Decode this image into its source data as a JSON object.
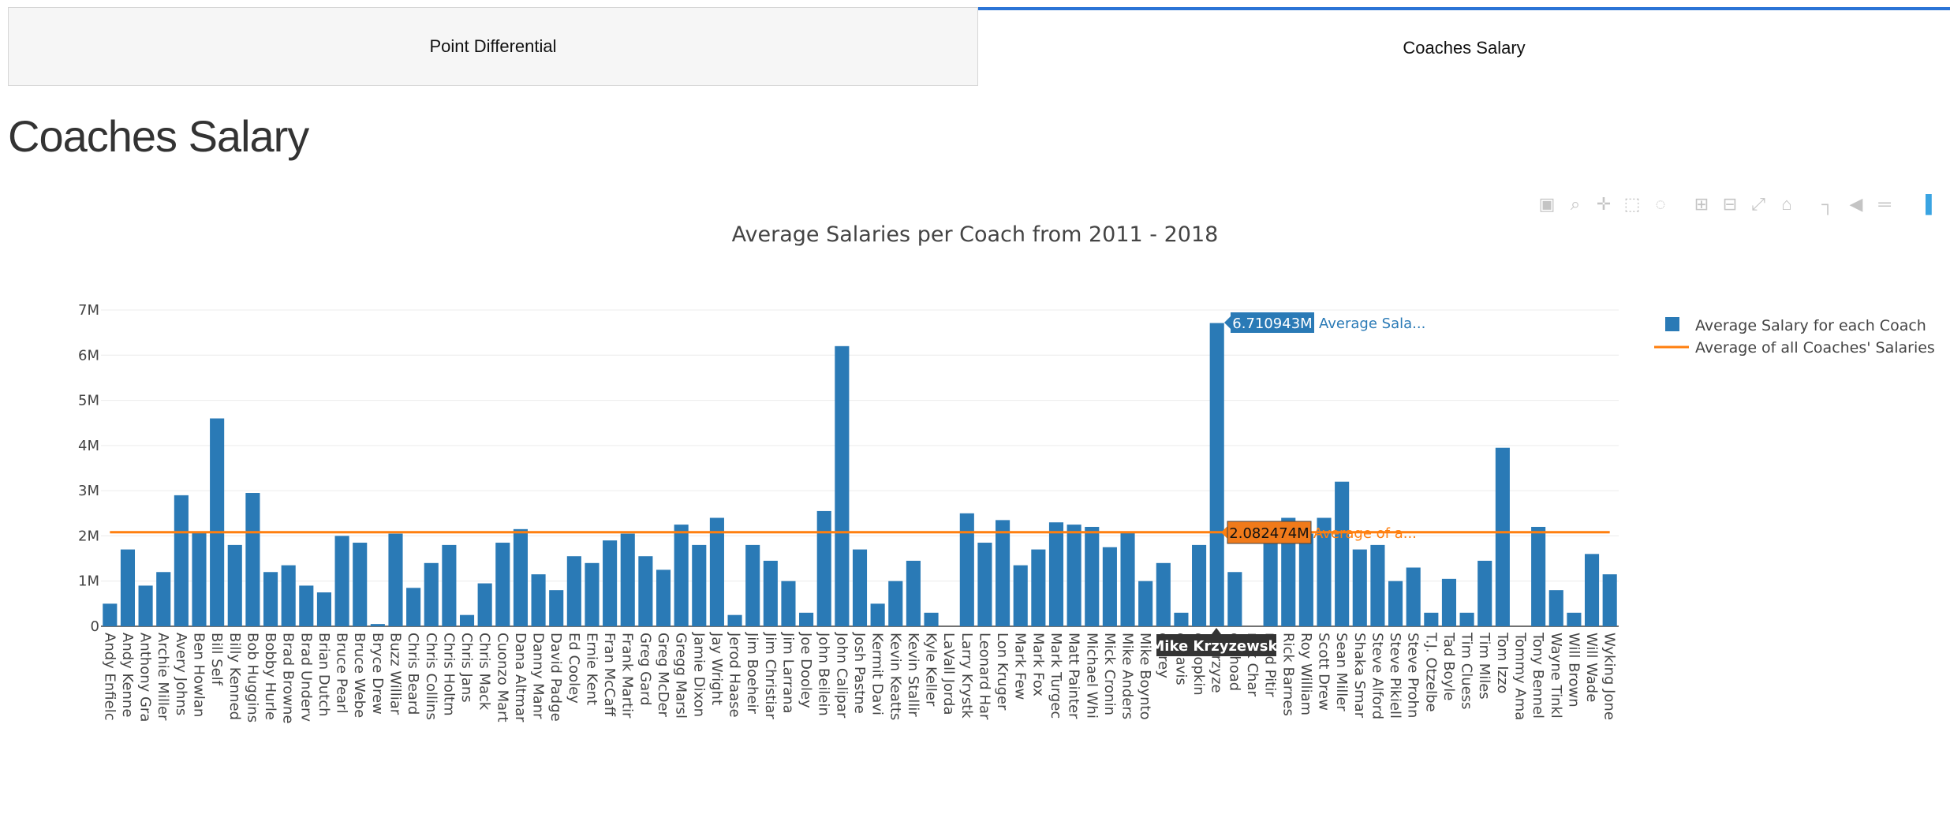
{
  "tabs": [
    {
      "label": "Point Differential",
      "active": false
    },
    {
      "label": "Coaches Salary",
      "active": true
    }
  ],
  "page_title": "Coaches Salary",
  "modebar": {
    "icons": [
      "camera-icon",
      "zoom-icon",
      "pan-icon",
      "box-select-icon",
      "lasso-select-icon",
      "zoom-in-icon",
      "zoom-out-icon",
      "autoscale-icon",
      "reset-axes-icon",
      "spike-lines-icon",
      "hover-closest-icon",
      "hover-compare-icon",
      "plotly-logo-icon"
    ]
  },
  "colors": {
    "bar": "#2a7ab6",
    "line": "#ff7f0e",
    "tab_accent": "#2b74d6",
    "hover_label_bg": "#333333"
  },
  "chart_data": {
    "type": "bar",
    "title": "Average Salaries per Coach from 2011 - 2018",
    "xlabel": "",
    "ylabel": "",
    "ylim": [
      0,
      7000000
    ],
    "y_ticks": [
      {
        "v": 0,
        "label": "0"
      },
      {
        "v": 1000000,
        "label": "1M"
      },
      {
        "v": 2000000,
        "label": "2M"
      },
      {
        "v": 3000000,
        "label": "3M"
      },
      {
        "v": 4000000,
        "label": "4M"
      },
      {
        "v": 5000000,
        "label": "5M"
      },
      {
        "v": 6000000,
        "label": "6M"
      },
      {
        "v": 7000000,
        "label": "7M"
      }
    ],
    "grid": true,
    "legend_position": "top-right",
    "categories": [
      "Andy Enfield",
      "Andy Kennedy",
      "Anthony Grant",
      "Archie Miller",
      "Avery Johnson",
      "Ben Howland",
      "Bill Self",
      "Billy Kennedy",
      "Bob Huggins",
      "Bobby Hurley",
      "Brad Brownell",
      "Brad Underwood",
      "Brian Dutcher",
      "Bruce Pearl",
      "Bruce Weber",
      "Bryce Drew",
      "Buzz Williams",
      "Chris Beard",
      "Chris Collins",
      "Chris Holtmann",
      "Chris Jans",
      "Chris Mack",
      "Cuonzo Martin",
      "Dana Altman",
      "Danny Manning",
      "David Padgett",
      "Ed Cooley",
      "Ernie Kent",
      "Fran McCaffery",
      "Frank Martin",
      "Greg Gard",
      "Greg McDermott",
      "Gregg Marshall",
      "Jamie Dixon",
      "Jay Wright",
      "Jerod Haase",
      "Jim Boeheim",
      "Jim Christian",
      "Jim Larranaga",
      "Joe Dooley",
      "John Beilein",
      "John Calipari",
      "Josh Pastner",
      "Kermit Davis",
      "Kevin Keatts",
      "Kevin Stallings",
      "Kyle Keller",
      "LaVall Jordan",
      "Larry Krystkowiak",
      "Leonard Hamilton",
      "Lon Kruger",
      "Mark Few",
      "Mark Fox",
      "Mark Turgeon",
      "Matt Painter",
      "Michael White",
      "Mick Cronin",
      "Mike Anderson",
      "Mike Boynton",
      "Mike Brey",
      "Mike Davis",
      "Mike Hopkins",
      "Mike Krzyzewski",
      "Mike Rhoades",
      "Patrick Chambers",
      "Richard Pitino",
      "Rick Barnes",
      "Roy Williams",
      "Scott Drew",
      "Sean Miller",
      "Shaka Smart",
      "Steve Alford",
      "Steve Pikiell",
      "Steve Prohm",
      "T.J. Otzelberger",
      "Tad Boyle",
      "Tim Cluess",
      "Tim Miles",
      "Tom Izzo",
      "Tommy Amaker",
      "Tony Bennett",
      "Wayne Tinkle",
      "Will Brown",
      "Will Wade",
      "Wyking Jones"
    ],
    "category_labels": [
      "Andy Enfielc",
      "Andy Kenne",
      "Anthony Gra",
      "Archie Miller",
      "Avery Johns",
      "Ben Howlan",
      "Bill Self",
      "Billy Kenned",
      "Bob Huggins",
      "Bobby Hurle",
      "Brad Browne",
      "Brad Underv",
      "Brian Dutch",
      "Bruce Pearl",
      "Bruce Webe",
      "Bryce Drew",
      "Buzz Williar",
      "Chris Beard",
      "Chris Collins",
      "Chris Holtm",
      "Chris Jans",
      "Chris Mack",
      "Cuonzo Mart",
      "Dana Altmar",
      "Danny Manr",
      "David Padge",
      "Ed Cooley",
      "Ernie Kent",
      "Fran McCaff",
      "Frank Martir",
      "Greg Gard",
      "Greg McDer",
      "Gregg Marsl",
      "Jamie Dixon",
      "Jay Wright",
      "Jerod Haase",
      "Jim Boeheir",
      "Jim Christiar",
      "Jim Larrana",
      "Joe Dooley",
      "John Beilein",
      "John Calipar",
      "Josh Pastne",
      "Kermit Davi",
      "Kevin Keatts",
      "Kevin Stallir",
      "Kyle Keller",
      "LaVall Jorda",
      "Larry Krystk",
      "Leonard Har",
      "Lon Kruger",
      "Mark Few",
      "Mark Fox",
      "Mark Turgec",
      "Matt Painter",
      "Michael Whi",
      "Mick Cronin",
      "Mike Anders",
      "Mike Boynto",
      "e Brey",
      "e Davis",
      "e Hopkin",
      "e Krzyze",
      "e Rhoad",
      "rick Char",
      "nard Pitir",
      "Rick Barnes",
      "Roy William",
      "Scott Drew",
      "Sean Miller",
      "Shaka Smar",
      "Steve Alford",
      "Steve Pikiell",
      "Steve Prohn",
      "T.J. Otzelbe",
      "Tad Boyle",
      "Tim Cluess",
      "Tim Miles",
      "Tom Izzo",
      "Tommy Ama",
      "Tony Bennel",
      "Wayne Tinkl",
      "Will Brown",
      "Will Wade",
      "Wyking Jone"
    ],
    "series": [
      {
        "name": "Average Salary for each Coach",
        "kind": "bar",
        "values": [
          500000,
          1700000,
          900000,
          1200000,
          2900000,
          2100000,
          4600000,
          1800000,
          2950000,
          1200000,
          1350000,
          900000,
          750000,
          2000000,
          1850000,
          50000,
          2050000,
          850000,
          1400000,
          1800000,
          250000,
          950000,
          1850000,
          2150000,
          1150000,
          800000,
          1550000,
          1400000,
          1900000,
          2050000,
          1550000,
          1250000,
          2250000,
          1800000,
          2400000,
          250000,
          1800000,
          1450000,
          1000000,
          300000,
          2550000,
          6200000,
          1700000,
          500000,
          1000000,
          1450000,
          300000,
          0,
          2500000,
          1850000,
          2350000,
          1350000,
          1700000,
          2300000,
          2250000,
          2200000,
          1750000,
          2100000,
          1000000,
          1400000,
          300000,
          1800000,
          6710943,
          1200000,
          0,
          1950000,
          2400000,
          2050000,
          2400000,
          3200000,
          1700000,
          1800000,
          1000000,
          1300000,
          300000,
          1050000,
          300000,
          1450000,
          3950000,
          0,
          2200000,
          800000,
          300000,
          1600000,
          1150000
        ]
      },
      {
        "name": "Average of all Coaches' Salaries",
        "kind": "line",
        "value": 2082474
      }
    ],
    "hover": [
      {
        "value_label": "6.710943M",
        "trace_label": "Average Sala...",
        "category_label": "Mike Krzyzewski"
      },
      {
        "value_label": "2.082474M",
        "trace_label": "Average of a..."
      }
    ]
  }
}
